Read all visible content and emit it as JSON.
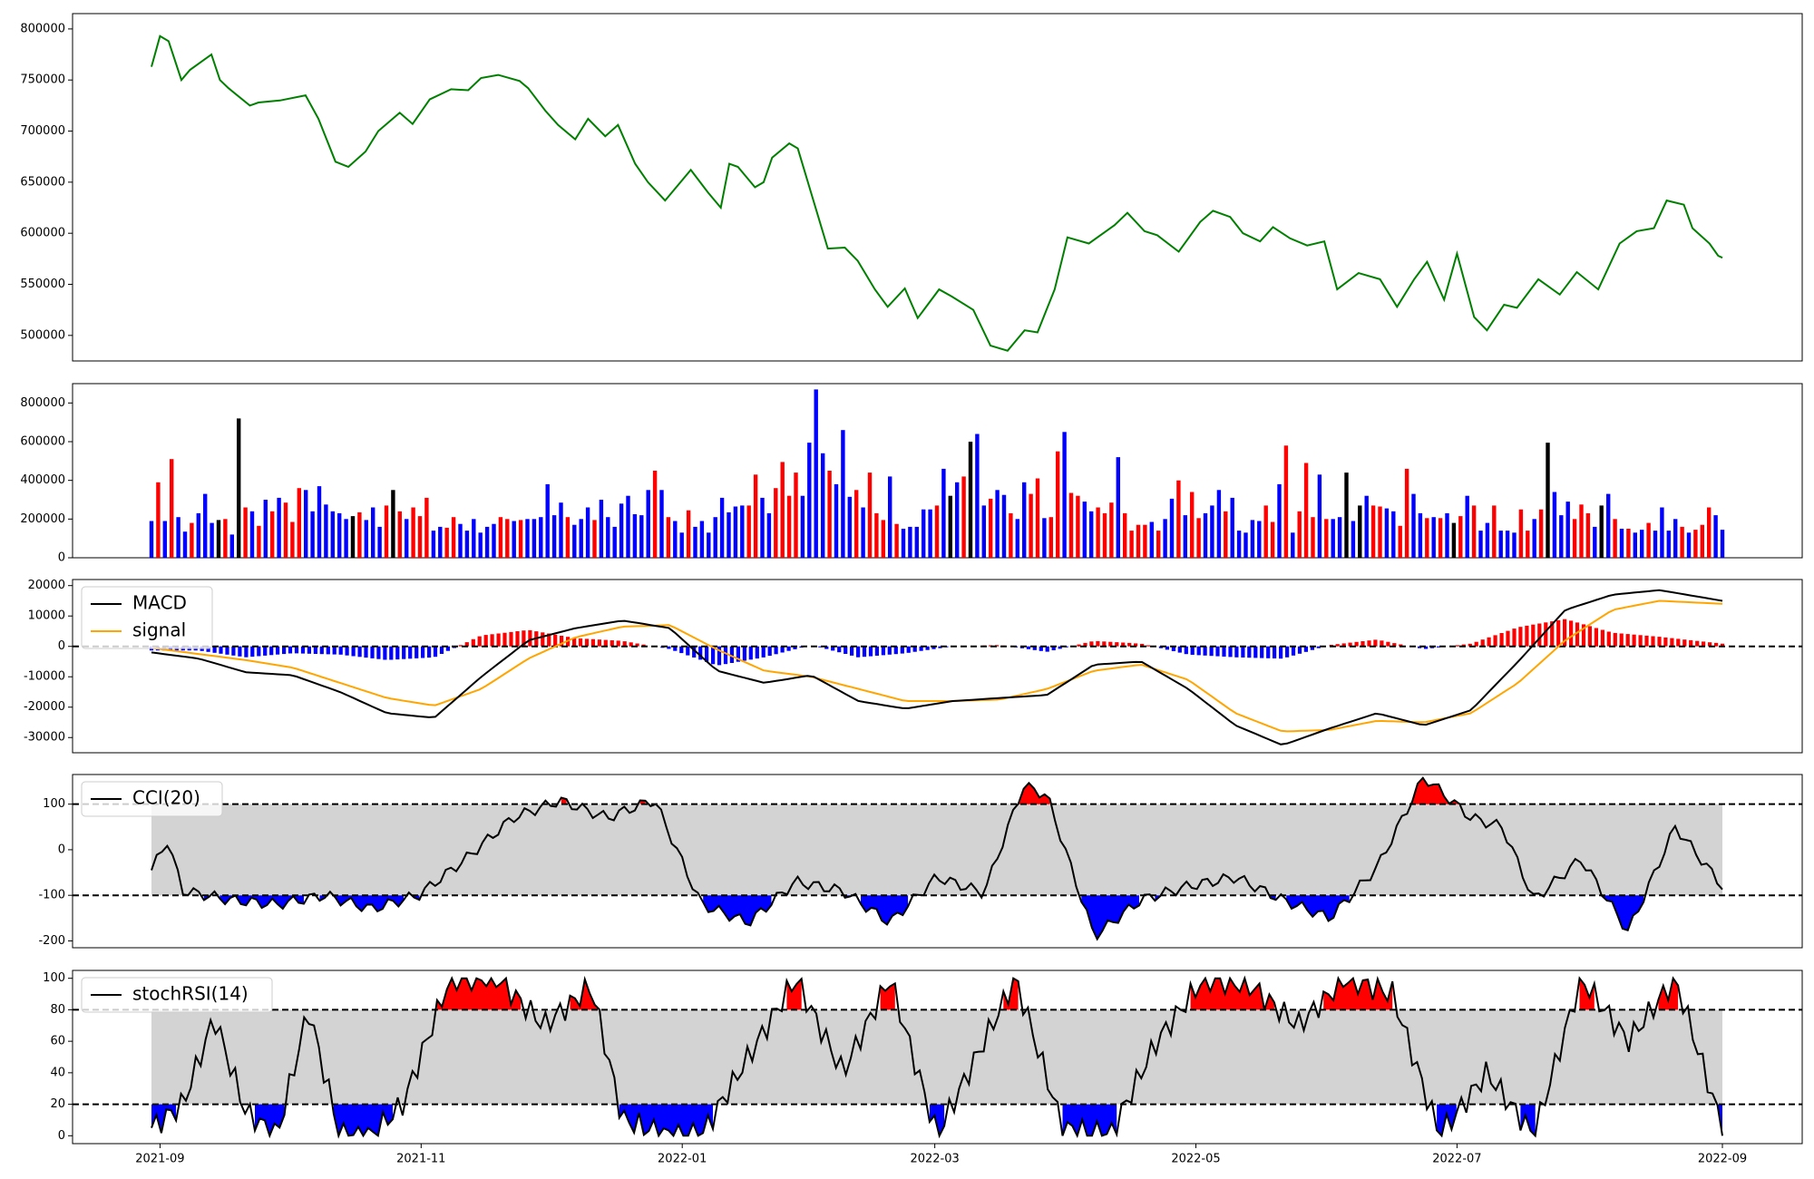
{
  "colors": {
    "price_line": "#008000",
    "volume_up": "#ff0000",
    "volume_down": "#0000ff",
    "volume_flat": "#000000",
    "macd_line": "#000000",
    "signal_line": "#ffa500",
    "hist_pos": "#ff0000",
    "hist_neg": "#0000ff",
    "band_fill": "#d3d3d3",
    "overbought_fill": "#ff0000",
    "oversold_fill": "#0000ff"
  },
  "chart_data": [
    {
      "panel": "price",
      "type": "line",
      "x_dates": [
        "2021-08-30",
        "2021-09-01",
        "2021-09-03",
        "2021-09-06",
        "2021-09-08",
        "2021-09-13",
        "2021-09-15",
        "2021-09-17",
        "2021-09-22",
        "2021-09-24",
        "2021-09-29",
        "2021-10-05",
        "2021-10-08",
        "2021-10-12",
        "2021-10-15",
        "2021-10-19",
        "2021-10-22",
        "2021-10-27",
        "2021-10-30",
        "2021-11-03",
        "2021-11-08",
        "2021-11-12",
        "2021-11-15",
        "2021-11-19",
        "2021-11-24",
        "2021-11-26",
        "2021-11-30",
        "2021-12-03",
        "2021-12-07",
        "2021-12-10",
        "2021-12-14",
        "2021-12-17",
        "2021-12-21",
        "2021-12-24",
        "2021-12-28",
        "2022-01-03",
        "2022-01-07",
        "2022-01-10",
        "2022-01-12",
        "2022-01-14",
        "2022-01-18",
        "2022-01-20",
        "2022-01-22",
        "2022-01-26",
        "2022-01-28",
        "2022-02-04",
        "2022-02-08",
        "2022-02-11",
        "2022-02-15",
        "2022-02-18",
        "2022-02-22",
        "2022-02-25",
        "2022-03-02",
        "2022-03-05",
        "2022-03-10",
        "2022-03-14",
        "2022-03-18",
        "2022-03-22",
        "2022-03-25",
        "2022-03-29",
        "2022-04-01",
        "2022-04-06",
        "2022-04-12",
        "2022-04-15",
        "2022-04-19",
        "2022-04-22",
        "2022-04-27",
        "2022-05-02",
        "2022-05-05",
        "2022-05-09",
        "2022-05-12",
        "2022-05-16",
        "2022-05-19",
        "2022-05-23",
        "2022-05-27",
        "2022-05-31",
        "2022-06-03",
        "2022-06-08",
        "2022-06-13",
        "2022-06-17",
        "2022-06-21",
        "2022-06-24",
        "2022-06-28",
        "2022-07-01",
        "2022-07-05",
        "2022-07-08",
        "2022-07-12",
        "2022-07-15",
        "2022-07-20",
        "2022-07-25",
        "2022-07-29",
        "2022-08-03",
        "2022-08-08",
        "2022-08-12",
        "2022-08-16",
        "2022-08-19",
        "2022-08-23",
        "2022-08-25",
        "2022-08-29",
        "2022-08-31",
        "2022-09-01"
      ],
      "y_values": [
        763000,
        793000,
        788000,
        750000,
        760000,
        775000,
        750000,
        742000,
        725000,
        728000,
        730000,
        735000,
        712000,
        670000,
        665000,
        680000,
        700000,
        718000,
        707000,
        731000,
        741000,
        740000,
        752000,
        755000,
        749000,
        742000,
        720000,
        706000,
        692000,
        712000,
        695000,
        706000,
        668000,
        650000,
        632000,
        662000,
        640000,
        625000,
        668000,
        665000,
        645000,
        650000,
        674000,
        688000,
        683000,
        585000,
        586000,
        573000,
        545000,
        528000,
        546000,
        517000,
        545000,
        538000,
        525000,
        490000,
        485000,
        505000,
        503000,
        545000,
        596000,
        590000,
        608000,
        620000,
        602000,
        598000,
        582000,
        611000,
        622000,
        616000,
        600000,
        592000,
        606000,
        595000,
        588000,
        592000,
        545000,
        561000,
        555000,
        528000,
        555000,
        572000,
        535000,
        580000,
        518000,
        505000,
        530000,
        527000,
        555000,
        540000,
        562000,
        545000,
        590000,
        602000,
        605000,
        632000,
        628000,
        605000,
        590000,
        578000,
        576000
      ],
      "yticks": [
        "500000",
        "550000",
        "600000",
        "650000",
        "700000",
        "750000",
        "800000"
      ],
      "ylim": [
        475000,
        815000
      ]
    },
    {
      "panel": "volume",
      "type": "bar",
      "values": [
        190000,
        390000,
        190000,
        510000,
        210000,
        135000,
        180000,
        230000,
        330000,
        180000,
        195000,
        200000,
        120000,
        720000,
        260000,
        240000,
        165000,
        300000,
        240000,
        310000,
        285000,
        185000,
        360000,
        350000,
        240000,
        370000,
        275000,
        240000,
        230000,
        200000,
        215000,
        235000,
        195000,
        260000,
        160000,
        270000,
        350000,
        240000,
        200000,
        260000,
        215000,
        310000,
        140000,
        160000,
        155000,
        210000,
        175000,
        140000,
        200000,
        130000,
        160000,
        175000,
        210000,
        200000,
        190000,
        195000,
        200000,
        200000,
        210000,
        380000,
        220000,
        285000,
        210000,
        170000,
        200000,
        260000,
        195000,
        300000,
        210000,
        160000,
        280000,
        320000,
        225000,
        220000,
        350000,
        450000,
        350000,
        210000,
        190000,
        130000,
        245000,
        160000,
        190000,
        130000,
        210000,
        310000,
        235000,
        265000,
        270000,
        270000,
        430000,
        310000,
        230000,
        360000,
        495000,
        320000,
        440000,
        320000,
        595000,
        870000,
        540000,
        450000,
        380000,
        660000,
        315000,
        350000,
        260000,
        440000,
        230000,
        195000,
        420000,
        175000,
        150000,
        160000,
        160000,
        250000,
        250000,
        270000,
        460000,
        320000,
        390000,
        420000,
        600000,
        640000,
        270000,
        305000,
        350000,
        325000,
        230000,
        200000,
        390000,
        330000,
        410000,
        205000,
        210000,
        550000,
        650000,
        335000,
        320000,
        290000,
        240000,
        260000,
        230000,
        285000,
        520000,
        230000,
        140000,
        170000,
        170000,
        185000,
        140000,
        200000,
        305000,
        400000,
        220000,
        340000,
        205000,
        230000,
        270000,
        350000,
        240000,
        310000,
        140000,
        130000,
        195000,
        190000,
        270000,
        185000,
        380000,
        580000,
        130000,
        240000,
        490000,
        210000,
        430000,
        200000,
        200000,
        210000,
        440000,
        190000,
        270000,
        320000,
        270000,
        265000,
        255000,
        240000,
        165000,
        460000,
        330000,
        230000,
        205000,
        210000,
        205000,
        230000,
        180000,
        215000,
        320000,
        270000,
        140000,
        180000,
        270000,
        140000,
        140000,
        130000,
        250000,
        140000,
        200000,
        250000,
        595000,
        340000,
        220000,
        290000,
        200000,
        275000,
        230000,
        160000,
        270000,
        330000,
        200000,
        150000,
        150000,
        130000,
        145000,
        180000,
        140000,
        260000,
        140000,
        200000,
        160000,
        130000,
        145000,
        170000,
        260000,
        220000,
        145000
      ],
      "yticks": [
        "0",
        "200000",
        "400000",
        "600000",
        "800000"
      ],
      "ylim": [
        0,
        900000
      ]
    },
    {
      "panel": "macd",
      "type": "line",
      "series": [
        {
          "name": "MACD",
          "x": [
            0,
            0.03,
            0.06,
            0.09,
            0.12,
            0.15,
            0.18,
            0.21,
            0.24,
            0.27,
            0.3,
            0.33,
            0.36,
            0.39,
            0.42,
            0.45,
            0.48,
            0.51,
            0.54,
            0.57,
            0.6,
            0.63,
            0.66,
            0.69,
            0.72,
            0.75,
            0.78,
            0.81,
            0.84,
            0.87,
            0.9,
            0.93,
            0.96,
            1.0
          ],
          "y": [
            -2000,
            -4000,
            -8500,
            -9500,
            -15000,
            -22000,
            -23500,
            -10000,
            2000,
            6000,
            8500,
            6000,
            -8000,
            -12000,
            -9500,
            -18000,
            -20500,
            -18000,
            -17000,
            -16000,
            -6000,
            -5000,
            -14000,
            -26000,
            -32500,
            -27000,
            -22000,
            -26000,
            -21000,
            -5000,
            12000,
            17000,
            18500,
            15000
          ]
        }
      ],
      "signal_series": [
        -500,
        -2500,
        -4500,
        -7000,
        -12000,
        -17000,
        -19500,
        -14000,
        -4000,
        3000,
        6500,
        7000,
        -1000,
        -8000,
        -10000,
        -14000,
        -18000,
        -18000,
        -17500,
        -14000,
        -8000,
        -6000,
        -11000,
        -22000,
        -28000,
        -27500,
        -24500,
        -25000,
        -22000,
        -12000,
        2000,
        12000,
        15000,
        14000
      ],
      "yticks": [
        "-30000",
        "-20000",
        "-10000",
        "0",
        "10000",
        "20000"
      ],
      "ylim": [
        -35000,
        22000
      ],
      "legend": [
        "MACD",
        "signal"
      ],
      "legend_position": "upper-left"
    },
    {
      "panel": "cci",
      "type": "line",
      "series": [
        {
          "name": "CCI(20)"
        }
      ],
      "yticks": [
        "-200",
        "-100",
        "0",
        "100"
      ],
      "ylim": [
        -215,
        165
      ],
      "bands": [
        -100,
        100
      ],
      "legend": [
        "CCI(20)"
      ],
      "legend_position": "upper-left"
    },
    {
      "panel": "stochrsi",
      "type": "line",
      "series": [
        {
          "name": "stochRSI(14)"
        }
      ],
      "yticks": [
        "0",
        "20",
        "40",
        "60",
        "80",
        "100"
      ],
      "ylim": [
        -5,
        105
      ],
      "bands": [
        20,
        80
      ],
      "legend": [
        "stochRSI(14)"
      ],
      "legend_position": "upper-left"
    }
  ],
  "x_axis": {
    "ticks": [
      "2021-09",
      "2021-11",
      "2022-01",
      "2022-03",
      "2022-05",
      "2022-07",
      "2022-09"
    ],
    "start": "2021-08-30",
    "end": "2022-09-01"
  }
}
